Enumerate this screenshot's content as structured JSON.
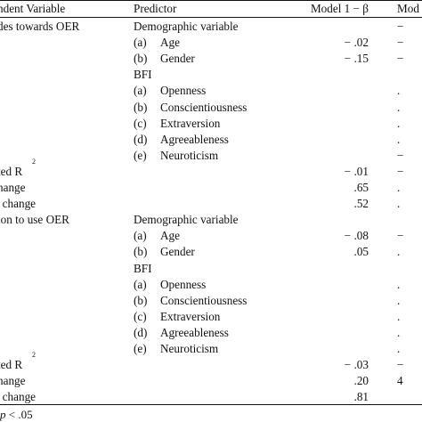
{
  "table": {
    "headers": {
      "dependent": "ndent Variable",
      "predictor": "Predictor",
      "model1": "Model 1 − β",
      "model2": "Mod"
    },
    "rows": [
      {
        "dep": "des towards OER",
        "letter": "",
        "item": "",
        "pred": "Demographic variable",
        "m1": "",
        "m2": "−"
      },
      {
        "dep": "",
        "letter": "(a)",
        "item": "Age",
        "pred": "",
        "m1": "− .02",
        "m2": "−"
      },
      {
        "dep": "",
        "letter": "(b)",
        "item": "Gender",
        "pred": "",
        "m1": "− .15",
        "m2": "−"
      },
      {
        "dep": "",
        "letter": "",
        "item": "",
        "pred": "BFI",
        "m1": "",
        "m2": ""
      },
      {
        "dep": "",
        "letter": "(a)",
        "item": "Openness",
        "pred": "",
        "m1": "",
        "m2": "."
      },
      {
        "dep": "",
        "letter": "(b)",
        "item": "Conscientiousness",
        "pred": "",
        "m1": "",
        "m2": "."
      },
      {
        "dep": "",
        "letter": "(c)",
        "item": "Extraversion",
        "pred": "",
        "m1": "",
        "m2": "."
      },
      {
        "dep": "",
        "letter": "(d)",
        "item": "Agreeableness",
        "pred": "",
        "m1": "",
        "m2": "."
      },
      {
        "dep": "",
        "letter": "(e)",
        "item": "Neuroticism",
        "pred": "",
        "m1": "",
        "m2": "−"
      },
      {
        "dep": "ted R",
        "sup": "2",
        "letter": "",
        "item": "",
        "pred": "",
        "m1": "− .01",
        "m2": "−"
      },
      {
        "dep": "hange",
        "letter": "",
        "item": "",
        "pred": "",
        "m1": ".65",
        "m2": "."
      },
      {
        "dep": "' change",
        "letter": "",
        "item": "",
        "pred": "",
        "m1": ".52",
        "m2": "."
      },
      {
        "dep": "ion to use OER",
        "letter": "",
        "item": "",
        "pred": "Demographic variable",
        "m1": "",
        "m2": ""
      },
      {
        "dep": "",
        "letter": "(a)",
        "item": "Age",
        "pred": "",
        "m1": "− .08",
        "m2": "−"
      },
      {
        "dep": "",
        "letter": "(b)",
        "item": "Gender",
        "pred": "",
        "m1": ".05",
        "m2": "."
      },
      {
        "dep": "",
        "letter": "",
        "item": "",
        "pred": "BFI",
        "m1": "",
        "m2": ""
      },
      {
        "dep": "",
        "letter": "(a)",
        "item": "Openness",
        "pred": "",
        "m1": "",
        "m2": "."
      },
      {
        "dep": "",
        "letter": "(b)",
        "item": "Conscientiousness",
        "pred": "",
        "m1": "",
        "m2": "."
      },
      {
        "dep": "",
        "letter": "(c)",
        "item": "Extraversion",
        "pred": "",
        "m1": "",
        "m2": "."
      },
      {
        "dep": "",
        "letter": "(d)",
        "item": "Agreeableness",
        "pred": "",
        "m1": "",
        "m2": "."
      },
      {
        "dep": "",
        "letter": "(e)",
        "item": "Neuroticism",
        "pred": "",
        "m1": "",
        "m2": "."
      },
      {
        "dep": "ted R",
        "sup": "2",
        "letter": "",
        "item": "",
        "pred": "",
        "m1": "− .03",
        "m2": "−"
      },
      {
        "dep": "hange",
        "letter": "",
        "item": "",
        "pred": "",
        "m1": ".20",
        "m2": "4"
      },
      {
        "dep": "' change",
        "letter": "",
        "item": "",
        "pred": "",
        "m1": ".81",
        "m2": ""
      }
    ],
    "note": {
      "p": "p",
      "text": " < .05"
    }
  }
}
